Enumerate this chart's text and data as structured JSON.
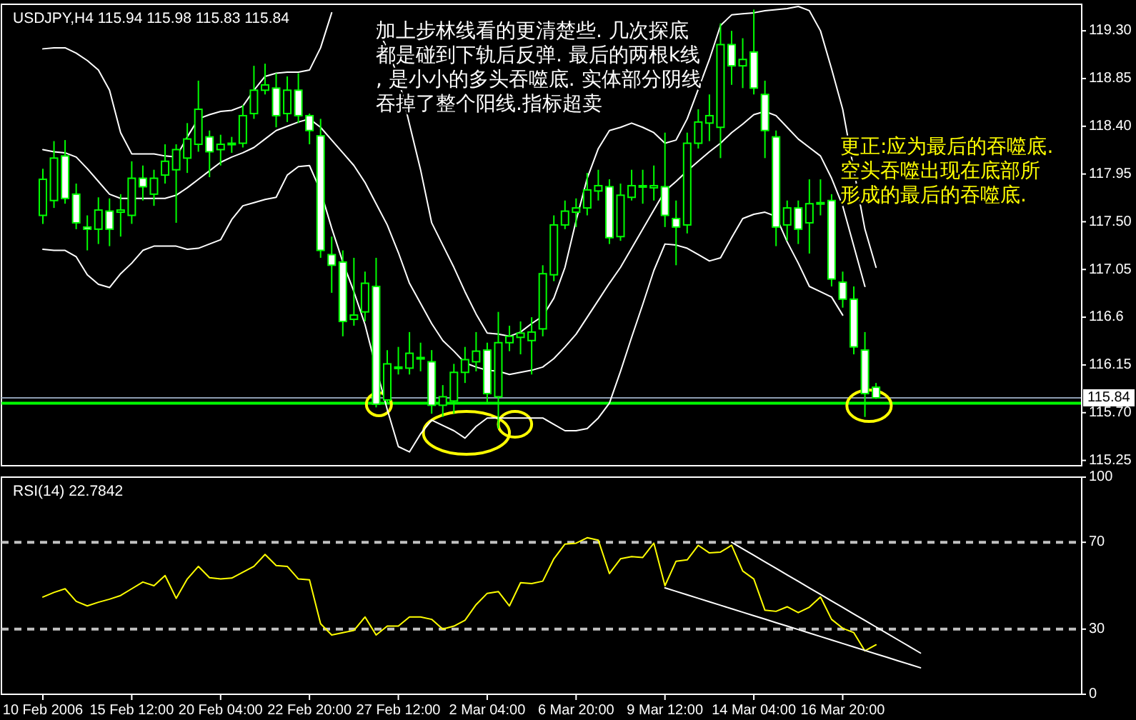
{
  "chart_data": [
    {
      "type": "candlestick",
      "title": "USDJPY,H4 115.94 115.98 115.83 115.84",
      "color": "#00ff00",
      "tick_labels": "y",
      "categories": [
        null,
        null,
        null,
        null,
        null,
        null,
        null,
        null,
        null,
        null,
        null,
        null,
        null,
        null,
        null,
        null,
        null,
        null,
        null,
        null,
        null,
        null,
        null,
        null,
        null,
        null,
        null,
        null,
        null,
        null,
        null,
        null,
        null,
        null,
        null,
        null,
        null,
        null,
        null,
        null,
        null,
        null,
        null,
        null,
        null,
        null,
        null,
        null,
        null,
        null,
        null,
        null,
        null,
        null,
        null,
        null,
        null,
        null,
        null,
        null,
        null,
        null,
        null,
        null,
        null,
        null,
        null,
        null,
        null,
        null,
        null,
        null,
        null,
        null,
        null,
        null,
        null,
        null,
        null,
        null,
        null,
        null,
        null,
        null,
        null,
        null,
        null,
        null,
        null,
        null,
        null,
        null,
        null,
        null
      ],
      "ohlc": [
        [
          117.56,
          118.0,
          117.48,
          117.9
        ],
        [
          117.7,
          118.26,
          117.63,
          118.1
        ],
        [
          118.12,
          118.27,
          117.67,
          117.72
        ],
        [
          117.76,
          117.86,
          117.43,
          117.49
        ],
        [
          117.45,
          117.56,
          117.23,
          117.43
        ],
        [
          117.43,
          117.73,
          117.29,
          117.61
        ],
        [
          117.6,
          117.72,
          117.27,
          117.43
        ],
        [
          117.59,
          117.76,
          117.36,
          117.61
        ],
        [
          117.56,
          118.07,
          117.48,
          117.91
        ],
        [
          117.91,
          118.03,
          117.7,
          117.83
        ],
        [
          117.76,
          117.99,
          117.65,
          117.91
        ],
        [
          117.94,
          118.23,
          117.86,
          118.07
        ],
        [
          117.99,
          118.23,
          117.49,
          118.18
        ],
        [
          118.1,
          118.43,
          117.96,
          118.28
        ],
        [
          118.23,
          118.83,
          118.16,
          118.56
        ],
        [
          118.3,
          118.36,
          117.92,
          118.16
        ],
        [
          118.18,
          118.32,
          118.03,
          118.23
        ],
        [
          118.23,
          118.3,
          118.15,
          118.24
        ],
        [
          118.24,
          118.6,
          118.2,
          118.5
        ],
        [
          118.52,
          118.97,
          118.47,
          118.74
        ],
        [
          118.74,
          118.99,
          118.7,
          118.79
        ],
        [
          118.76,
          118.9,
          118.39,
          118.5
        ],
        [
          118.52,
          118.87,
          118.44,
          118.74
        ],
        [
          118.74,
          118.9,
          118.43,
          118.5
        ],
        [
          118.5,
          118.52,
          118.23,
          118.36
        ],
        [
          118.31,
          118.47,
          117.16,
          117.23
        ],
        [
          117.19,
          117.36,
          116.83,
          117.09
        ],
        [
          117.12,
          117.23,
          116.42,
          116.56
        ],
        [
          116.58,
          117.16,
          116.52,
          116.62
        ],
        [
          116.65,
          117.03,
          116.56,
          116.92
        ],
        [
          116.89,
          117.16,
          115.75,
          115.78
        ],
        [
          115.82,
          116.29,
          115.78,
          116.16
        ],
        [
          116.13,
          116.32,
          116.06,
          116.12
        ],
        [
          116.12,
          116.46,
          116.06,
          116.26
        ],
        [
          116.22,
          116.36,
          116.09,
          116.21
        ],
        [
          116.18,
          116.29,
          115.69,
          115.77
        ],
        [
          115.77,
          115.96,
          115.66,
          115.85
        ],
        [
          115.81,
          116.16,
          115.69,
          116.08
        ],
        [
          116.08,
          116.32,
          115.98,
          116.2
        ],
        [
          116.18,
          116.46,
          116.09,
          116.28
        ],
        [
          116.29,
          116.36,
          115.78,
          115.88
        ],
        [
          115.85,
          116.65,
          115.55,
          116.36
        ],
        [
          116.36,
          116.52,
          116.28,
          116.42
        ],
        [
          116.41,
          116.56,
          116.25,
          116.45
        ],
        [
          116.38,
          116.6,
          116.06,
          116.46
        ],
        [
          116.49,
          117.09,
          116.42,
          117.01
        ],
        [
          117.0,
          117.56,
          116.94,
          117.47
        ],
        [
          117.47,
          117.7,
          117.43,
          117.6
        ],
        [
          117.59,
          117.72,
          117.45,
          117.63
        ],
        [
          117.63,
          117.96,
          117.56,
          117.8
        ],
        [
          117.79,
          117.99,
          117.7,
          117.84
        ],
        [
          117.83,
          117.9,
          117.29,
          117.35
        ],
        [
          117.36,
          117.86,
          117.32,
          117.75
        ],
        [
          117.73,
          117.99,
          117.7,
          117.84
        ],
        [
          117.84,
          117.99,
          117.67,
          117.83
        ],
        [
          117.82,
          118.03,
          117.7,
          117.84
        ],
        [
          117.83,
          118.34,
          117.45,
          117.56
        ],
        [
          117.53,
          117.7,
          117.09,
          117.45
        ],
        [
          117.47,
          118.34,
          117.39,
          118.24
        ],
        [
          118.24,
          118.56,
          118.19,
          118.44
        ],
        [
          118.43,
          118.7,
          118.26,
          118.5
        ],
        [
          118.39,
          119.37,
          118.1,
          119.17
        ],
        [
          119.17,
          119.3,
          118.79,
          118.97
        ],
        [
          118.97,
          119.23,
          118.76,
          119.03
        ],
        [
          119.1,
          119.5,
          118.7,
          118.76
        ],
        [
          118.7,
          118.83,
          118.1,
          118.36
        ],
        [
          118.3,
          118.36,
          117.27,
          117.45
        ],
        [
          117.47,
          117.7,
          117.32,
          117.63
        ],
        [
          117.63,
          117.7,
          117.29,
          117.43
        ],
        [
          117.49,
          117.9,
          117.2,
          117.67
        ],
        [
          117.67,
          117.9,
          117.56,
          117.68
        ],
        [
          117.7,
          117.76,
          116.89,
          116.96
        ],
        [
          116.93,
          117.03,
          116.69,
          116.77
        ],
        [
          116.77,
          116.89,
          116.25,
          116.32
        ],
        [
          116.29,
          116.46,
          115.66,
          115.88
        ],
        [
          115.94,
          115.98,
          115.83,
          115.84
        ],
        null,
        null,
        null,
        null,
        null,
        null,
        null,
        null,
        null,
        null,
        null,
        null,
        null,
        null,
        null,
        null,
        null,
        null
      ],
      "series": [
        {
          "type": "line",
          "color": "#ffffff",
          "values": [
            119.13,
            119.14,
            119.14,
            119.09,
            119.02,
            118.93,
            118.74,
            118.34,
            118.14,
            118.14,
            118.14,
            118.12,
            118.11,
            118.3,
            118.47,
            118.51,
            118.54,
            118.55,
            118.59,
            118.74,
            118.87,
            118.9,
            118.91,
            118.91,
            118.93,
            119.14,
            119.47,
            null,
            null,
            null,
            119.35,
            119.13,
            118.86,
            118.42,
            117.99,
            117.49,
            117.28,
            117.07,
            116.84,
            116.63,
            116.45,
            116.44,
            116.42,
            116.46,
            116.54,
            116.61,
            116.78,
            117.07,
            117.51,
            117.91,
            118.19,
            118.36,
            118.39,
            118.43,
            118.39,
            118.34,
            118.24,
            118.27,
            118.47,
            118.75,
            119.03,
            119.35,
            119.45,
            119.46,
            119.47,
            119.49,
            119.5,
            119.51,
            119.53,
            119.49,
            119.3,
            118.94,
            118.56,
            117.99,
            117.43,
            117.07,
            null,
            null,
            null,
            null,
            null,
            null,
            null,
            null,
            null,
            null,
            null,
            null,
            null,
            null,
            null,
            null,
            null,
            null
          ]
        },
        {
          "type": "line",
          "color": "#ffffff",
          "values": [
            118.18,
            118.16,
            118.15,
            118.11,
            118.0,
            117.88,
            117.76,
            117.72,
            117.72,
            117.72,
            117.72,
            117.72,
            117.75,
            117.82,
            117.9,
            117.98,
            118.06,
            118.11,
            118.15,
            118.2,
            118.28,
            118.36,
            118.4,
            118.44,
            118.47,
            118.39,
            118.27,
            118.15,
            118.03,
            117.87,
            117.67,
            117.47,
            117.21,
            116.92,
            116.73,
            116.54,
            116.38,
            116.28,
            116.17,
            116.13,
            116.1,
            116.09,
            116.06,
            116.08,
            116.1,
            116.13,
            116.21,
            116.32,
            116.44,
            116.6,
            116.76,
            116.92,
            117.07,
            117.25,
            117.43,
            117.61,
            117.79,
            117.88,
            117.98,
            118.07,
            118.16,
            118.24,
            118.34,
            118.42,
            118.51,
            118.54,
            118.5,
            118.39,
            118.28,
            118.2,
            118.12,
            117.91,
            117.65,
            117.27,
            116.89,
            null,
            null,
            null,
            null,
            null,
            null,
            null,
            null,
            null,
            null,
            null,
            null,
            null,
            null,
            null,
            null,
            null,
            null,
            null
          ]
        },
        {
          "type": "line",
          "color": "#ffffff",
          "values": [
            117.24,
            117.23,
            117.23,
            117.17,
            117.0,
            116.91,
            116.88,
            117.01,
            117.11,
            117.23,
            117.27,
            117.27,
            117.27,
            117.24,
            117.25,
            117.29,
            117.33,
            117.52,
            117.65,
            117.68,
            117.71,
            117.73,
            117.94,
            118.02,
            118.03,
            117.79,
            117.44,
            117.12,
            116.84,
            116.53,
            116.12,
            115.73,
            115.38,
            115.33,
            115.5,
            115.63,
            115.58,
            115.53,
            115.46,
            115.57,
            115.65,
            115.65,
            115.65,
            115.65,
            115.65,
            115.65,
            115.59,
            115.53,
            115.53,
            115.55,
            115.65,
            115.79,
            116.09,
            116.41,
            116.72,
            117.04,
            117.29,
            117.28,
            117.25,
            117.19,
            117.13,
            117.16,
            117.35,
            117.53,
            117.57,
            117.59,
            117.55,
            117.31,
            117.11,
            116.89,
            116.84,
            116.79,
            116.62,
            null,
            null,
            null,
            null,
            null,
            null,
            null,
            null,
            null,
            null,
            null,
            null,
            null,
            null,
            null,
            null,
            null,
            null,
            null,
            null,
            null
          ]
        }
      ],
      "ylim": [
        115.2,
        119.55
      ],
      "yticks": [
        115.25,
        {
          "value": 115.7,
          "label": "115.70"
        },
        116.15,
        116.6,
        117.05,
        {
          "value": 117.5,
          "label": "117.50"
        },
        117.95,
        {
          "value": 118.4,
          "label": "118.40"
        },
        118.85,
        {
          "value": 119.3,
          "label": "119.30"
        }
      ],
      "ref_lines": [
        {
          "axis": "y",
          "value": 115.84,
          "label": "115.84",
          "color": "#8c9cb0",
          "line_style": "solid"
        },
        {
          "axis": "y",
          "value": 115.79,
          "color": "#00ff00",
          "line_style": "solid"
        }
      ],
      "annotations": [
        "加上步林线看的更清楚些. 几次探底都是碰到下轨后反弹. 最后的两根k线, 是小小的多头吞噬底. 实体部分阴线吞掉了整个阳线.指标超卖",
        "更正:应为最后的吞噬底. 空头吞噬出现在底部所形成的最后的吞噬底."
      ]
    },
    {
      "type": "line",
      "title": "RSI(14) 22.7842",
      "categories": [
        "10 Feb 2006",
        null,
        null,
        null,
        null,
        null,
        null,
        null,
        "15 Feb 12:00",
        null,
        null,
        null,
        null,
        null,
        null,
        null,
        "20 Feb 04:00",
        null,
        null,
        null,
        null,
        null,
        null,
        null,
        "22 Feb 20:00",
        null,
        null,
        null,
        null,
        null,
        null,
        null,
        "27 Feb 12:00",
        null,
        null,
        null,
        null,
        null,
        null,
        null,
        "2 Mar 04:00",
        null,
        null,
        null,
        null,
        null,
        null,
        null,
        "6 Mar 20:00",
        null,
        null,
        null,
        null,
        null,
        null,
        null,
        "9 Mar 12:00",
        null,
        null,
        null,
        null,
        null,
        null,
        null,
        "14 Mar 04:00",
        null,
        null,
        null,
        null,
        null,
        null,
        null,
        "16 Mar 20:00",
        null,
        null,
        null,
        null,
        null,
        null,
        null,
        null,
        null,
        null,
        null,
        null,
        null,
        null,
        null,
        null,
        null,
        null,
        null,
        null,
        null
      ],
      "series": [
        {
          "color": "#ffff00",
          "values": [
            44.8,
            46.9,
            48.6,
            42.8,
            40.7,
            42.4,
            43.8,
            45.5,
            48.6,
            51.7,
            50.0,
            54.7,
            44.2,
            53.1,
            58.9,
            53.7,
            53.1,
            53.5,
            56.2,
            58.9,
            64.4,
            59.3,
            58.9,
            53.1,
            52.7,
            32.5,
            27.3,
            28.4,
            29.4,
            35.6,
            27.3,
            31.4,
            31.4,
            35.6,
            35.6,
            34.5,
            30.0,
            31.4,
            34.1,
            41.3,
            46.5,
            47.3,
            40.7,
            51.4,
            51.0,
            52.1,
            62.4,
            69.2,
            69.6,
            72.1,
            71.0,
            55.6,
            62.4,
            63.4,
            63.0,
            69.6,
            50.0,
            61.3,
            61.9,
            68.6,
            65.1,
            65.5,
            68.6,
            56.8,
            53.1,
            38.7,
            38.2,
            40.3,
            37.6,
            40.1,
            44.8,
            34.5,
            30.4,
            28.4,
            20.0,
            22.8,
            null,
            null,
            null,
            null,
            null,
            null,
            null,
            null,
            null,
            null,
            null,
            null,
            null,
            null,
            null,
            null,
            null,
            null
          ]
        },
        {
          "type": "line",
          "color": "#ffffff",
          "values": [
            null,
            null,
            null,
            null,
            null,
            null,
            null,
            null,
            null,
            null,
            null,
            null,
            null,
            null,
            null,
            null,
            null,
            null,
            null,
            null,
            null,
            null,
            null,
            null,
            null,
            null,
            null,
            null,
            null,
            null,
            null,
            null,
            null,
            null,
            null,
            null,
            null,
            null,
            null,
            null,
            null,
            null,
            null,
            null,
            null,
            null,
            null,
            null,
            null,
            null,
            null,
            null,
            null,
            null,
            null,
            null,
            null,
            null,
            null,
            null,
            null,
            null,
            70,
            67,
            64,
            61,
            58,
            55,
            52,
            49,
            46,
            43,
            40,
            37,
            34,
            31,
            28,
            25,
            22,
            19,
            null,
            null,
            null,
            null,
            null,
            null,
            null,
            null,
            null,
            null,
            null,
            null,
            null,
            null
          ]
        },
        {
          "type": "line",
          "color": "#ffffff",
          "values": [
            null,
            null,
            null,
            null,
            null,
            null,
            null,
            null,
            null,
            null,
            null,
            null,
            null,
            null,
            null,
            null,
            null,
            null,
            null,
            null,
            null,
            null,
            null,
            null,
            null,
            null,
            null,
            null,
            null,
            null,
            null,
            null,
            null,
            null,
            null,
            null,
            null,
            null,
            null,
            null,
            null,
            null,
            null,
            null,
            null,
            null,
            null,
            null,
            null,
            null,
            null,
            null,
            null,
            null,
            null,
            null,
            49,
            47.4,
            45.8,
            44.2,
            42.6,
            41,
            39.4,
            37.8,
            36.2,
            34.6,
            33,
            31.4,
            29.8,
            28.2,
            26.6,
            25,
            23.4,
            21.8,
            20.2,
            18.6,
            17,
            15.4,
            13.8,
            12.2,
            null,
            null,
            null,
            null,
            null,
            null,
            null,
            null,
            null,
            null,
            null,
            null,
            null,
            null
          ]
        }
      ],
      "ylim": [
        0,
        100
      ],
      "yticks": [
        0,
        30,
        70,
        100
      ],
      "ref_lines": [
        {
          "axis": "y",
          "value": 70,
          "color": "#c0c0c0",
          "line_style": "dashed"
        },
        {
          "axis": "y",
          "value": 30,
          "color": "#c0c0c0",
          "line_style": "dashed"
        }
      ]
    }
  ]
}
